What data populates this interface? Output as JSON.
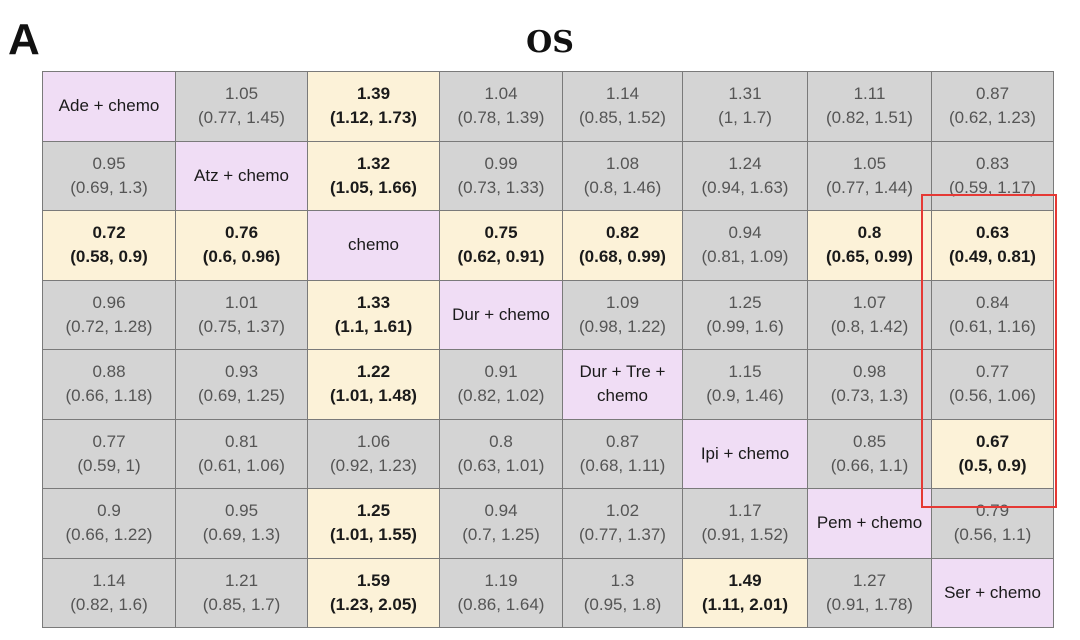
{
  "panel_label": "A",
  "title": "OS",
  "colors": {
    "gray": "#d4d4d4",
    "yellow": "#fcf2d8",
    "purple": "#f0ddf5",
    "highlight": "#e53935"
  },
  "chart_data": {
    "type": "table",
    "title": "OS",
    "treatments": [
      "Ade + chemo",
      "Atz + chemo",
      "chemo",
      "Dur + chemo",
      "Dur + Tre + chemo",
      "Ipi + chemo",
      "Pem + chemo",
      "Ser + chemo"
    ],
    "rows": [
      [
        {
          "t": "Ade + chemo",
          "s": "p"
        },
        {
          "v": "1.05",
          "ci": "(0.77, 1.45)",
          "s": "g"
        },
        {
          "v": "1.39",
          "ci": "(1.12, 1.73)",
          "s": "y"
        },
        {
          "v": "1.04",
          "ci": "(0.78, 1.39)",
          "s": "g"
        },
        {
          "v": "1.14",
          "ci": "(0.85, 1.52)",
          "s": "g"
        },
        {
          "v": "1.31",
          "ci": "(1, 1.7)",
          "s": "g"
        },
        {
          "v": "1.11",
          "ci": "(0.82, 1.51)",
          "s": "g"
        },
        {
          "v": "0.87",
          "ci": "(0.62, 1.23)",
          "s": "g"
        }
      ],
      [
        {
          "v": "0.95",
          "ci": "(0.69, 1.3)",
          "s": "g"
        },
        {
          "t": "Atz + chemo",
          "s": "p"
        },
        {
          "v": "1.32",
          "ci": "(1.05, 1.66)",
          "s": "y"
        },
        {
          "v": "0.99",
          "ci": "(0.73, 1.33)",
          "s": "g"
        },
        {
          "v": "1.08",
          "ci": "(0.8, 1.46)",
          "s": "g"
        },
        {
          "v": "1.24",
          "ci": "(0.94, 1.63)",
          "s": "g"
        },
        {
          "v": "1.05",
          "ci": "(0.77, 1.44)",
          "s": "g"
        },
        {
          "v": "0.83",
          "ci": "(0.59, 1.17)",
          "s": "g"
        }
      ],
      [
        {
          "v": "0.72",
          "ci": "(0.58, 0.9)",
          "s": "y"
        },
        {
          "v": "0.76",
          "ci": "(0.6, 0.96)",
          "s": "y"
        },
        {
          "t": "chemo",
          "s": "p"
        },
        {
          "v": "0.75",
          "ci": "(0.62, 0.91)",
          "s": "y"
        },
        {
          "v": "0.82",
          "ci": "(0.68, 0.99)",
          "s": "y"
        },
        {
          "v": "0.94",
          "ci": "(0.81, 1.09)",
          "s": "g"
        },
        {
          "v": "0.8",
          "ci": "(0.65, 0.99)",
          "s": "y"
        },
        {
          "v": "0.63",
          "ci": "(0.49, 0.81)",
          "s": "y"
        }
      ],
      [
        {
          "v": "0.96",
          "ci": "(0.72, 1.28)",
          "s": "g"
        },
        {
          "v": "1.01",
          "ci": "(0.75, 1.37)",
          "s": "g"
        },
        {
          "v": "1.33",
          "ci": "(1.1, 1.61)",
          "s": "y"
        },
        {
          "t": "Dur + chemo",
          "s": "p"
        },
        {
          "v": "1.09",
          "ci": "(0.98, 1.22)",
          "s": "g"
        },
        {
          "v": "1.25",
          "ci": "(0.99, 1.6)",
          "s": "g"
        },
        {
          "v": "1.07",
          "ci": "(0.8, 1.42)",
          "s": "g"
        },
        {
          "v": "0.84",
          "ci": "(0.61, 1.16)",
          "s": "g"
        }
      ],
      [
        {
          "v": "0.88",
          "ci": "(0.66, 1.18)",
          "s": "g"
        },
        {
          "v": "0.93",
          "ci": "(0.69, 1.25)",
          "s": "g"
        },
        {
          "v": "1.22",
          "ci": "(1.01, 1.48)",
          "s": "y"
        },
        {
          "v": "0.91",
          "ci": "(0.82, 1.02)",
          "s": "g"
        },
        {
          "t": "Dur + Tre + chemo",
          "s": "p"
        },
        {
          "v": "1.15",
          "ci": "(0.9, 1.46)",
          "s": "g"
        },
        {
          "v": "0.98",
          "ci": "(0.73, 1.3)",
          "s": "g"
        },
        {
          "v": "0.77",
          "ci": "(0.56, 1.06)",
          "s": "g"
        }
      ],
      [
        {
          "v": "0.77",
          "ci": "(0.59, 1)",
          "s": "g"
        },
        {
          "v": "0.81",
          "ci": "(0.61, 1.06)",
          "s": "g"
        },
        {
          "v": "1.06",
          "ci": "(0.92, 1.23)",
          "s": "g"
        },
        {
          "v": "0.8",
          "ci": "(0.63, 1.01)",
          "s": "g"
        },
        {
          "v": "0.87",
          "ci": "(0.68, 1.11)",
          "s": "g"
        },
        {
          "t": "Ipi + chemo",
          "s": "p"
        },
        {
          "v": "0.85",
          "ci": "(0.66, 1.1)",
          "s": "g"
        },
        {
          "v": "0.67",
          "ci": "(0.5, 0.9)",
          "s": "y"
        }
      ],
      [
        {
          "v": "0.9",
          "ci": "(0.66, 1.22)",
          "s": "g"
        },
        {
          "v": "0.95",
          "ci": "(0.69, 1.3)",
          "s": "g"
        },
        {
          "v": "1.25",
          "ci": "(1.01, 1.55)",
          "s": "y"
        },
        {
          "v": "0.94",
          "ci": "(0.7, 1.25)",
          "s": "g"
        },
        {
          "v": "1.02",
          "ci": "(0.77, 1.37)",
          "s": "g"
        },
        {
          "v": "1.17",
          "ci": "(0.91, 1.52)",
          "s": "g"
        },
        {
          "t": "Pem + chemo",
          "s": "p"
        },
        {
          "v": "0.79",
          "ci": "(0.56, 1.1)",
          "s": "g"
        }
      ],
      [
        {
          "v": "1.14",
          "ci": "(0.82, 1.6)",
          "s": "g"
        },
        {
          "v": "1.21",
          "ci": "(0.85, 1.7)",
          "s": "g"
        },
        {
          "v": "1.59",
          "ci": "(1.23, 2.05)",
          "s": "y"
        },
        {
          "v": "1.19",
          "ci": "(0.86, 1.64)",
          "s": "g"
        },
        {
          "v": "1.3",
          "ci": "(0.95, 1.8)",
          "s": "g"
        },
        {
          "v": "1.49",
          "ci": "(1.11, 2.01)",
          "s": "y"
        },
        {
          "v": "1.27",
          "ci": "(0.91, 1.78)",
          "s": "g"
        },
        {
          "t": "Ser + chemo",
          "s": "p"
        }
      ]
    ]
  }
}
